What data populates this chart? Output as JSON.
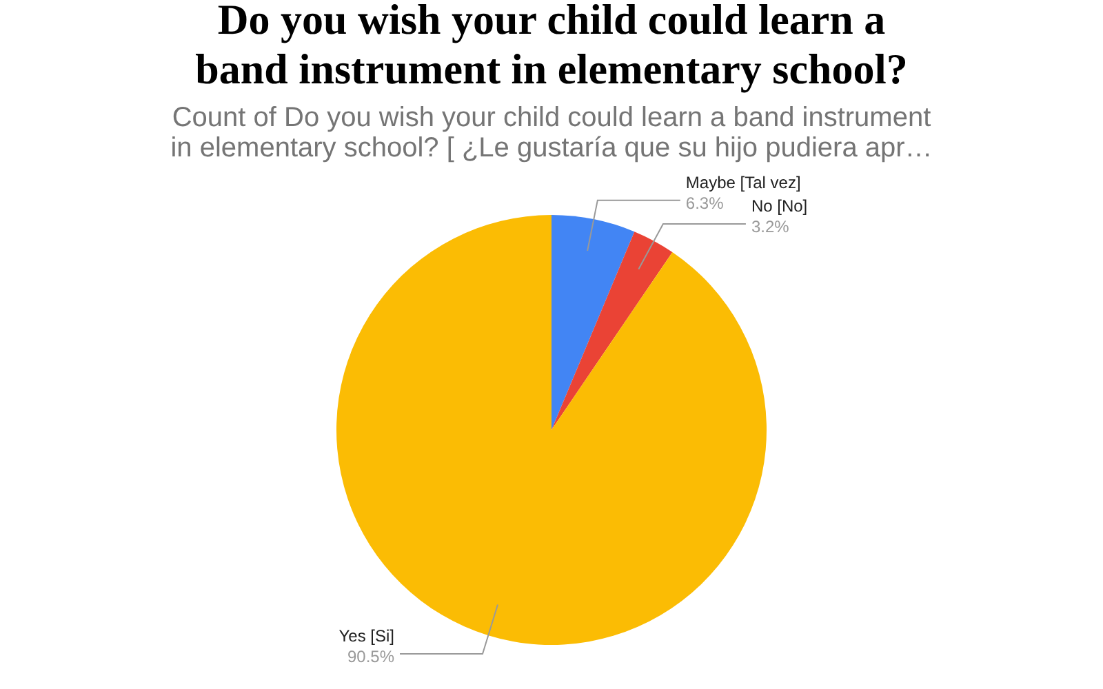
{
  "chart_data": {
    "type": "pie",
    "title": "Do you wish your child could learn a band instrument in elementary school?",
    "subtitle": "Count of Do you wish your child could learn a band instrument in elementary school? [ ¿Le gustaría que su hijo pudiera apr…",
    "categories": [
      "Maybe [Tal vez]",
      "No [No]",
      "Yes [Si]"
    ],
    "values": [
      6.3,
      3.2,
      90.5
    ],
    "colors": [
      "#4285f4",
      "#ea4335",
      "#fbbc04"
    ],
    "value_labels": [
      "6.3%",
      "3.2%",
      "90.5%"
    ]
  }
}
